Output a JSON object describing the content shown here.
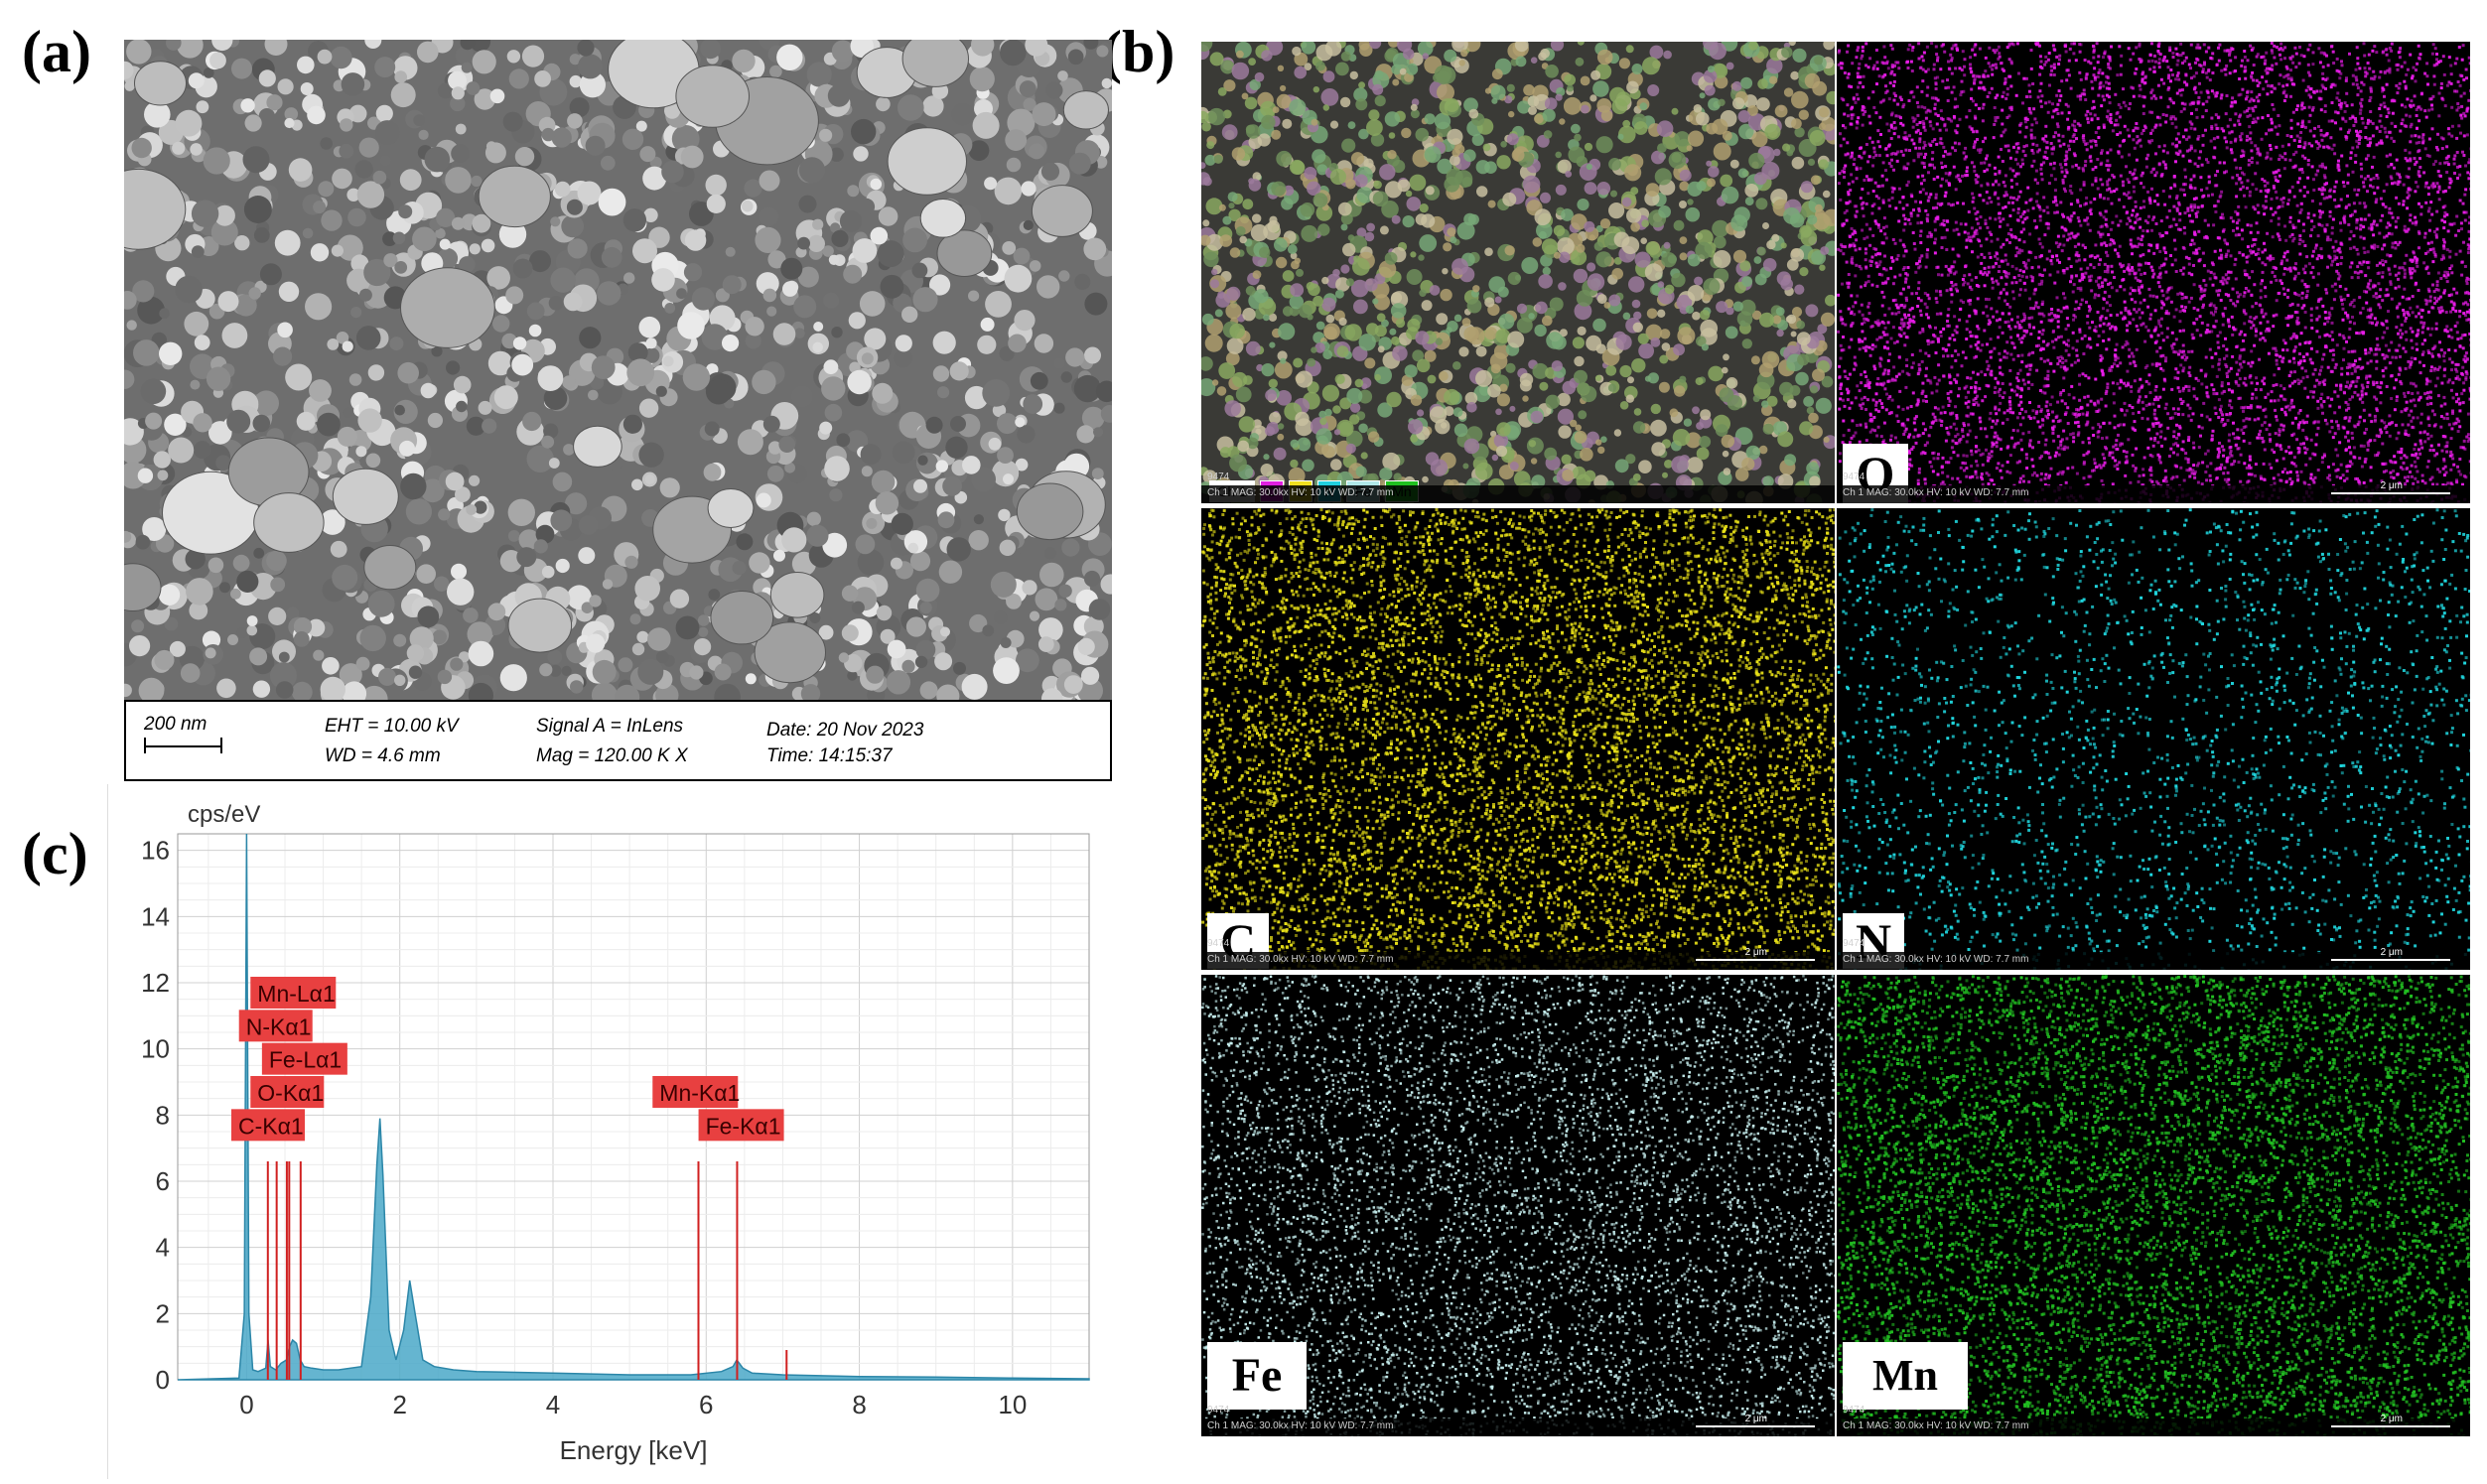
{
  "panels": {
    "a": "(a)",
    "b": "(b)",
    "c": "(c)"
  },
  "sem": {
    "scale_label": "200 nm",
    "eht": "EHT = 10.00 kV",
    "wd": "WD =  4.6 mm",
    "signal": "Signal A = InLens",
    "mag": "Mag =  120.00 K X",
    "date": "Date: 20 Nov 2023",
    "time": "Time: 14:15:37"
  },
  "eds_maps": {
    "legend": [
      {
        "label": "Ch 1",
        "color": "#ffffff"
      },
      {
        "label": "O",
        "color": "#e020e0"
      },
      {
        "label": "C",
        "color": "#f0e020"
      },
      {
        "label": "N",
        "color": "#20d0e0"
      },
      {
        "label": "Fe",
        "color": "#b0e8e8"
      },
      {
        "label": "Mn",
        "color": "#20c020"
      }
    ],
    "overview_id": "9474",
    "overview_footer": "Ch 1   MAG: 30.0kx   HV: 10 kV   WD: 7.7 mm",
    "tiles": [
      {
        "element": "O",
        "color": "#e81ce8",
        "id": "9474",
        "footer": "Ch 1   MAG: 30.0kx   HV: 10 kV   WD: 7.7 mm",
        "scale": "2 μm"
      },
      {
        "element": "C",
        "color": "#e8e018",
        "id": "9474",
        "footer": "Ch 1   MAG: 30.0kx   HV: 10 kV   WD: 7.7 mm",
        "scale": "2 μm"
      },
      {
        "element": "N",
        "color": "#20d8e0",
        "id": "9474",
        "footer": "Ch 1   MAG: 30.0kx   HV: 10 kV   WD: 7.7 mm",
        "scale": "2 μm"
      },
      {
        "element": "Fe",
        "color": "#c8f0f0",
        "id": "9474",
        "footer": "Ch 1   MAG: 30.0kx   HV: 10 kV   WD: 7.7 mm",
        "scale": "2 μm"
      },
      {
        "element": "Mn",
        "color": "#22c022",
        "id": "9474",
        "footer": "Ch 1   MAG: 30.0kx   HV: 10 kV   WD: 7.7 mm",
        "scale": "2 μm"
      }
    ]
  },
  "chart_data": {
    "type": "area",
    "ylabel": "cps/eV",
    "xlabel": "Energy [keV]",
    "xlim": [
      -0.9,
      11.0
    ],
    "ylim": [
      0,
      16.5
    ],
    "xticks": [
      0,
      2,
      4,
      6,
      8,
      10
    ],
    "yticks": [
      0,
      2,
      4,
      6,
      8,
      10,
      12,
      14,
      16
    ],
    "grid": true,
    "series": [
      {
        "color": "#4aa8c8",
        "x": [
          -0.9,
          -0.1,
          -0.03,
          0.0,
          0.03,
          0.08,
          0.15,
          0.25,
          0.28,
          0.31,
          0.38,
          0.45,
          0.52,
          0.56,
          0.6,
          0.65,
          0.7,
          0.75,
          0.85,
          1.0,
          1.2,
          1.5,
          1.62,
          1.7,
          1.74,
          1.78,
          1.86,
          1.95,
          2.05,
          2.13,
          2.2,
          2.3,
          2.45,
          2.7,
          3.0,
          4.0,
          5.0,
          5.8,
          6.2,
          6.35,
          6.4,
          6.48,
          6.6,
          7.0,
          8.0,
          9.0,
          10.0,
          11.0
        ],
        "y": [
          0,
          0.05,
          2.0,
          16.5,
          2.0,
          0.3,
          0.25,
          0.35,
          1.2,
          0.4,
          0.3,
          0.5,
          0.6,
          1.0,
          1.2,
          1.1,
          0.6,
          0.4,
          0.35,
          0.3,
          0.3,
          0.4,
          2.5,
          6.5,
          7.9,
          6.2,
          1.5,
          0.6,
          1.5,
          3.0,
          2.0,
          0.6,
          0.4,
          0.3,
          0.25,
          0.2,
          0.15,
          0.15,
          0.25,
          0.4,
          0.6,
          0.35,
          0.2,
          0.15,
          0.1,
          0.08,
          0.05,
          0.03
        ]
      }
    ],
    "markers": [
      {
        "label": "C-Kα1",
        "x": 0.277,
        "height": 6.6
      },
      {
        "label": "N-Kα1",
        "x": 0.392,
        "height": 6.6
      },
      {
        "label": "O-Kα1",
        "x": 0.525,
        "height": 6.6
      },
      {
        "label": "Mn-Lα1",
        "x": 0.556,
        "height": 6.6
      },
      {
        "label": "Fe-Lα1",
        "x": 0.705,
        "height": 6.6
      },
      {
        "label": "Mn-Kα1",
        "x": 5.899,
        "height": 6.6
      },
      {
        "label": "Fe-Kα1",
        "x": 6.404,
        "height": 6.6
      }
    ],
    "annotations": [
      {
        "label": "Mn-Lα1",
        "x": 0.05,
        "y": 11.7
      },
      {
        "label": "N-Kα1",
        "x": -0.1,
        "y": 10.7
      },
      {
        "label": "Fe-Lα1",
        "x": 0.2,
        "y": 9.7
      },
      {
        "label": "O-Kα1",
        "x": 0.05,
        "y": 8.7
      },
      {
        "label": "C-Kα1",
        "x": -0.2,
        "y": 7.7
      },
      {
        "label": "Mn-Kα1",
        "x": 5.3,
        "y": 8.7
      },
      {
        "label": "Fe-Kα1",
        "x": 5.9,
        "y": 7.7
      }
    ]
  }
}
